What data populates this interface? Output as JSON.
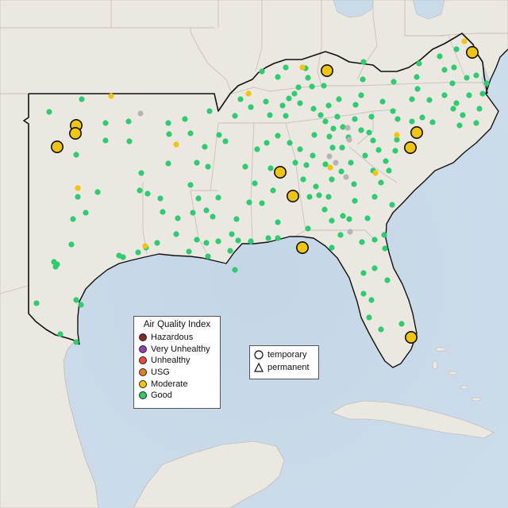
{
  "legend": {
    "title": "Air Quality Index",
    "categories": [
      {
        "label": "Hazardous",
        "color": "#7e2a2a"
      },
      {
        "label": "Very Unhealthy",
        "color": "#8e44ad"
      },
      {
        "label": "Unhealthy",
        "color": "#e74c3c"
      },
      {
        "label": "USG",
        "color": "#e67e22"
      },
      {
        "label": "Moderate",
        "color": "#f1c40f"
      },
      {
        "label": "Good",
        "color": "#2ecc71"
      }
    ]
  },
  "monitor_types": [
    {
      "label": "temporary",
      "icon": "circle-icon"
    },
    {
      "label": "permanent",
      "icon": "triangle-icon"
    }
  ],
  "colors": {
    "land": "#ebe7e1",
    "water": "#c9dae9",
    "state_lines": "#c9c2ba",
    "region_outline": "#000000",
    "no_data": "#b5b5b5"
  }
}
